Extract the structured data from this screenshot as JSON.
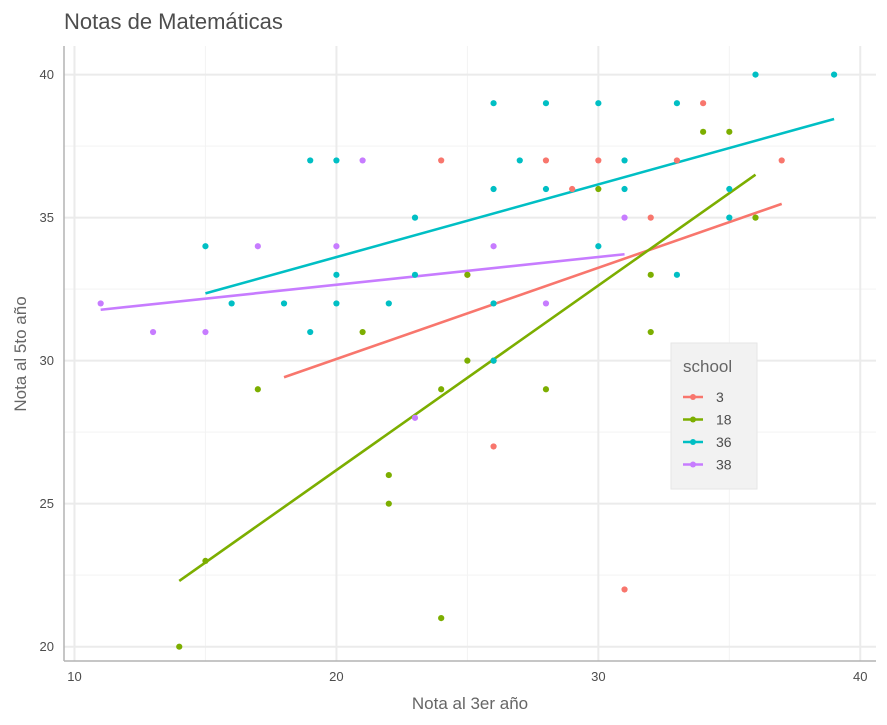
{
  "chart_data": {
    "type": "scatter",
    "title": "Notas de Matemáticas",
    "xlabel": "Nota al 3er año",
    "ylabel": "Nota al 5to año",
    "xlim": [
      9.6,
      40.6
    ],
    "ylim": [
      19.5,
      41.0
    ],
    "xticks": [
      10,
      20,
      30,
      40
    ],
    "yticks": [
      20,
      25,
      30,
      35,
      40
    ],
    "grid": true,
    "legend": {
      "title": "school",
      "placement": "right-inside"
    },
    "series": [
      {
        "name": "3",
        "color": "#F8766D",
        "points": [
          [
            24,
            37
          ],
          [
            28,
            37
          ],
          [
            29,
            36
          ],
          [
            30,
            37
          ],
          [
            32,
            35
          ],
          [
            33,
            37
          ],
          [
            34,
            39
          ],
          [
            37,
            37
          ],
          [
            26,
            27
          ],
          [
            31,
            22
          ],
          [
            25,
            33
          ]
        ],
        "fit": [
          [
            18,
            29.42
          ],
          [
            37,
            35.48
          ]
        ]
      },
      {
        "name": "18",
        "color": "#7CAE00",
        "points": [
          [
            14,
            20
          ],
          [
            15,
            23
          ],
          [
            17,
            29
          ],
          [
            21,
            31
          ],
          [
            22,
            26
          ],
          [
            22,
            25
          ],
          [
            24,
            29
          ],
          [
            24,
            21
          ],
          [
            25,
            33
          ],
          [
            25,
            30
          ],
          [
            26,
            30
          ],
          [
            28,
            29
          ],
          [
            30,
            36
          ],
          [
            32,
            33
          ],
          [
            32,
            31
          ],
          [
            34,
            38
          ],
          [
            35,
            38
          ],
          [
            36,
            35
          ]
        ],
        "fit": [
          [
            14,
            22.3
          ],
          [
            36,
            36.5
          ]
        ]
      },
      {
        "name": "36",
        "color": "#00BFC4",
        "points": [
          [
            15,
            34
          ],
          [
            16,
            32
          ],
          [
            18,
            32
          ],
          [
            19,
            37
          ],
          [
            19,
            31
          ],
          [
            20,
            37
          ],
          [
            20,
            33
          ],
          [
            20,
            32
          ],
          [
            22,
            32
          ],
          [
            23,
            35
          ],
          [
            23,
            33
          ],
          [
            26,
            39
          ],
          [
            26,
            36
          ],
          [
            26,
            32
          ],
          [
            26,
            30
          ],
          [
            27,
            37
          ],
          [
            28,
            39
          ],
          [
            28,
            36
          ],
          [
            30,
            39
          ],
          [
            30,
            34
          ],
          [
            31,
            37
          ],
          [
            31,
            36
          ],
          [
            33,
            39
          ],
          [
            33,
            33
          ],
          [
            35,
            36
          ],
          [
            35,
            35
          ],
          [
            36,
            40
          ],
          [
            39,
            40
          ]
        ],
        "fit": [
          [
            15,
            32.35
          ],
          [
            39,
            38.45
          ]
        ]
      },
      {
        "name": "38",
        "color": "#C77CFF",
        "points": [
          [
            11,
            32
          ],
          [
            13,
            31
          ],
          [
            15,
            31
          ],
          [
            17,
            34
          ],
          [
            20,
            34
          ],
          [
            21,
            37
          ],
          [
            23,
            28
          ],
          [
            26,
            34
          ],
          [
            28,
            32
          ],
          [
            31,
            35
          ]
        ],
        "fit": [
          [
            11,
            31.78
          ],
          [
            31,
            33.72
          ]
        ]
      }
    ]
  }
}
